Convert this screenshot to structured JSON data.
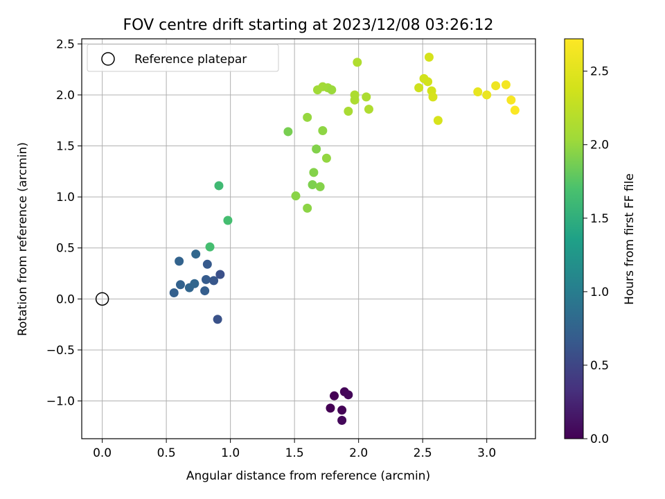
{
  "chart_data": {
    "type": "scatter",
    "title": "FOV centre drift starting at 2023/12/08 03:26:12",
    "xlabel": "Angular distance from reference (arcmin)",
    "ylabel": "Rotation from reference (arcmin)",
    "xlim": [
      -0.16,
      3.38
    ],
    "ylim": [
      -1.37,
      2.55
    ],
    "xticks": [
      0.0,
      0.5,
      1.0,
      1.5,
      2.0,
      2.5,
      3.0
    ],
    "xtick_labels": [
      "0.0",
      "0.5",
      "1.0",
      "1.5",
      "2.0",
      "2.5",
      "3.0"
    ],
    "yticks": [
      -1.0,
      -0.5,
      0.0,
      0.5,
      1.0,
      1.5,
      2.0,
      2.5
    ],
    "ytick_labels": [
      "−1.0",
      "−0.5",
      "0.0",
      "0.5",
      "1.0",
      "1.5",
      "2.0",
      "2.5"
    ],
    "grid": true,
    "legend": {
      "entries": [
        {
          "label": "Reference platepar",
          "marker": "open-circle"
        }
      ],
      "placement": "upper-left"
    },
    "reference_point": {
      "x": 0.0,
      "y": 0.0
    },
    "colorbar": {
      "label": "Hours from first FF file",
      "colormap": "viridis",
      "range": [
        0.0,
        2.72
      ],
      "ticks": [
        0.0,
        0.5,
        1.0,
        1.5,
        2.0,
        2.5
      ],
      "tick_labels": [
        "0.0",
        "0.5",
        "1.0",
        "1.5",
        "2.0",
        "2.5"
      ]
    },
    "points": [
      {
        "x": 1.78,
        "y": -1.07,
        "c": 0.0
      },
      {
        "x": 1.81,
        "y": -0.95,
        "c": 0.0
      },
      {
        "x": 1.87,
        "y": -1.09,
        "c": 0.02
      },
      {
        "x": 1.89,
        "y": -0.91,
        "c": 0.03
      },
      {
        "x": 1.92,
        "y": -0.94,
        "c": 0.04
      },
      {
        "x": 1.87,
        "y": -1.19,
        "c": 0.05
      },
      {
        "x": 0.56,
        "y": 0.06,
        "c": 0.72
      },
      {
        "x": 0.6,
        "y": 0.37,
        "c": 0.75
      },
      {
        "x": 0.61,
        "y": 0.14,
        "c": 0.74
      },
      {
        "x": 0.68,
        "y": 0.11,
        "c": 0.77
      },
      {
        "x": 0.72,
        "y": 0.15,
        "c": 0.78
      },
      {
        "x": 0.73,
        "y": 0.44,
        "c": 0.79
      },
      {
        "x": 0.8,
        "y": 0.08,
        "c": 0.7
      },
      {
        "x": 0.81,
        "y": 0.19,
        "c": 0.68
      },
      {
        "x": 0.82,
        "y": 0.34,
        "c": 0.66
      },
      {
        "x": 0.87,
        "y": 0.18,
        "c": 0.64
      },
      {
        "x": 0.9,
        "y": -0.2,
        "c": 0.6
      },
      {
        "x": 0.92,
        "y": 0.24,
        "c": 0.58
      },
      {
        "x": 0.84,
        "y": 0.51,
        "c": 1.66
      },
      {
        "x": 0.91,
        "y": 1.11,
        "c": 1.62
      },
      {
        "x": 0.98,
        "y": 0.77,
        "c": 1.66
      },
      {
        "x": 1.45,
        "y": 1.64,
        "c": 1.88
      },
      {
        "x": 1.51,
        "y": 1.01,
        "c": 1.95
      },
      {
        "x": 1.6,
        "y": 0.89,
        "c": 1.96
      },
      {
        "x": 1.6,
        "y": 1.78,
        "c": 2.0
      },
      {
        "x": 1.64,
        "y": 1.12,
        "c": 1.9
      },
      {
        "x": 1.65,
        "y": 1.24,
        "c": 1.93
      },
      {
        "x": 1.67,
        "y": 1.47,
        "c": 1.92
      },
      {
        "x": 1.68,
        "y": 2.05,
        "c": 2.05
      },
      {
        "x": 1.7,
        "y": 1.1,
        "c": 1.93
      },
      {
        "x": 1.72,
        "y": 1.65,
        "c": 1.97
      },
      {
        "x": 1.72,
        "y": 2.08,
        "c": 2.06
      },
      {
        "x": 1.75,
        "y": 1.38,
        "c": 1.99
      },
      {
        "x": 1.76,
        "y": 2.07,
        "c": 2.04
      },
      {
        "x": 1.79,
        "y": 2.05,
        "c": 2.02
      },
      {
        "x": 1.92,
        "y": 1.84,
        "c": 2.1
      },
      {
        "x": 1.97,
        "y": 2.0,
        "c": 2.13
      },
      {
        "x": 1.97,
        "y": 1.95,
        "c": 2.12
      },
      {
        "x": 1.99,
        "y": 2.32,
        "c": 2.15
      },
      {
        "x": 2.06,
        "y": 1.98,
        "c": 2.12
      },
      {
        "x": 2.08,
        "y": 1.86,
        "c": 2.14
      },
      {
        "x": 2.47,
        "y": 2.07,
        "c": 2.35
      },
      {
        "x": 2.51,
        "y": 2.16,
        "c": 2.37
      },
      {
        "x": 2.54,
        "y": 2.13,
        "c": 2.38
      },
      {
        "x": 2.55,
        "y": 2.37,
        "c": 2.4
      },
      {
        "x": 2.57,
        "y": 2.04,
        "c": 2.39
      },
      {
        "x": 2.58,
        "y": 1.98,
        "c": 2.41
      },
      {
        "x": 2.62,
        "y": 1.75,
        "c": 2.42
      },
      {
        "x": 2.93,
        "y": 2.03,
        "c": 2.55
      },
      {
        "x": 3.0,
        "y": 2.0,
        "c": 2.57
      },
      {
        "x": 3.07,
        "y": 2.09,
        "c": 2.6
      },
      {
        "x": 3.15,
        "y": 2.1,
        "c": 2.64
      },
      {
        "x": 3.19,
        "y": 1.95,
        "c": 2.67
      },
      {
        "x": 3.22,
        "y": 1.85,
        "c": 2.7
      }
    ]
  }
}
